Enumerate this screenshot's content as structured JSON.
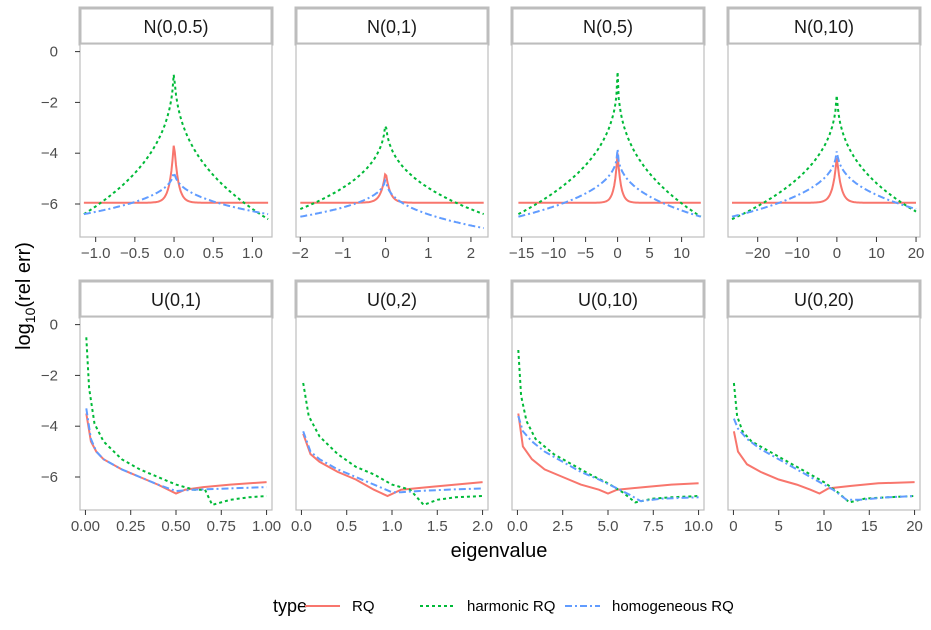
{
  "chart_data": {
    "type": "line",
    "xlabel": "eigenvalue",
    "ylabel_main": "log",
    "ylabel_sub": "10",
    "ylabel_rest": "(rel err)",
    "y_ticks": [
      0,
      -2,
      -4,
      -6
    ],
    "ylim": [
      -7.3,
      0.3
    ],
    "legend": {
      "title": "type",
      "position": "bottom",
      "entries": [
        {
          "name": "RQ",
          "color": "#F8766D",
          "dash": "solid"
        },
        {
          "name": "harmonic RQ",
          "color": "#00BA38",
          "dash": "dotted"
        },
        {
          "name": "homogeneous RQ",
          "color": "#619CFF",
          "dash": "dashed"
        }
      ]
    },
    "panels": [
      {
        "label": "N(0,0.5)",
        "kind": "normal",
        "xlim": [
          -1.2,
          1.25
        ],
        "x_ticks": [
          -1.0,
          -0.5,
          0.0,
          0.5,
          1.0
        ],
        "x_tick_labels": [
          "−1.0",
          "−0.5",
          "0.0",
          "0.5",
          "1.0"
        ],
        "series": {
          "RQ": {
            "xmin": -1.15,
            "xmax": 1.2,
            "peak": -3.5,
            "base": -5.95,
            "width": 0.05
          },
          "harmonic RQ": {
            "xmin": -1.15,
            "xmax": 1.2,
            "peak": 0.0,
            "left": -6.4,
            "right": -6.6,
            "width": 0.22
          },
          "homogeneous RQ": {
            "xmin": -1.15,
            "xmax": 1.2,
            "peak": -4.5,
            "left": -6.4,
            "right": -6.4,
            "width": 0.2
          }
        }
      },
      {
        "label": "N(0,1)",
        "kind": "normal",
        "xlim": [
          -2.1,
          2.4
        ],
        "x_ticks": [
          -2,
          -1,
          0,
          1,
          2
        ],
        "x_tick_labels": [
          "−2",
          "−1",
          "0",
          "1",
          "2"
        ],
        "series": {
          "RQ": {
            "xmin": -2.0,
            "xmax": 2.3,
            "peak": -4.7,
            "base": -5.95,
            "width": 0.1
          },
          "harmonic RQ": {
            "xmin": -2.0,
            "xmax": 2.3,
            "peak": -2.3,
            "left": -6.2,
            "right": -6.4,
            "width": 0.45
          },
          "homogeneous RQ": {
            "xmin": -2.0,
            "xmax": 2.3,
            "peak": -4.8,
            "left": -6.5,
            "right": -6.95,
            "width": 0.3
          }
        }
      },
      {
        "label": "N(0,5)",
        "kind": "normal",
        "xlim": [
          -16.5,
          13.5
        ],
        "x_ticks": [
          -15,
          -10,
          -5,
          0,
          5,
          10
        ],
        "x_tick_labels": [
          "−15",
          "−10",
          "−5",
          "0",
          "5",
          "10"
        ],
        "series": {
          "RQ": {
            "xmin": -15.5,
            "xmax": 13.0,
            "peak": -4.0,
            "base": -5.95,
            "width": 0.5
          },
          "harmonic RQ": {
            "xmin": -15.5,
            "xmax": 13.0,
            "peak": -0.5,
            "left": -6.4,
            "right": -6.5,
            "width": 2.5
          },
          "homogeneous RQ": {
            "xmin": -15.5,
            "xmax": 13.0,
            "peak": -3.7,
            "left": -6.5,
            "right": -6.5,
            "width": 2.5
          }
        }
      },
      {
        "label": "N(0,10)",
        "kind": "normal",
        "xlim": [
          -27.5,
          21
        ],
        "x_ticks": [
          -20,
          -10,
          0,
          10,
          20
        ],
        "x_tick_labels": [
          "−20",
          "−10",
          "0",
          "10",
          "20"
        ],
        "series": {
          "RQ": {
            "xmin": -26.5,
            "xmax": 20.0,
            "peak": -4.1,
            "base": -5.95,
            "width": 1.0
          },
          "harmonic RQ": {
            "xmin": -26.5,
            "xmax": 20.0,
            "peak": -1.1,
            "left": -6.6,
            "right": -6.3,
            "width": 5.0
          },
          "homogeneous RQ": {
            "xmin": -26.5,
            "xmax": 20.0,
            "peak": -3.6,
            "left": -6.5,
            "right": -6.2,
            "width": 5.0
          }
        }
      },
      {
        "label": "U(0,1)",
        "kind": "uniform",
        "xlim": [
          -0.03,
          1.03
        ],
        "x_ticks": [
          0.0,
          0.25,
          0.5,
          0.75,
          1.0
        ],
        "x_tick_labels": [
          "0.00",
          "0.25",
          "0.50",
          "0.75",
          "1.00"
        ],
        "series": {
          "RQ": {
            "x": [
              0.005,
              0.03,
              0.06,
              0.1,
              0.2,
              0.3,
              0.4,
              0.5,
              0.55,
              0.65,
              0.8,
              1.0
            ],
            "y": [
              -3.5,
              -4.6,
              -5.0,
              -5.3,
              -5.7,
              -6.0,
              -6.3,
              -6.65,
              -6.5,
              -6.4,
              -6.3,
              -6.2
            ]
          },
          "harmonic RQ": {
            "x": [
              0.005,
              0.02,
              0.05,
              0.1,
              0.2,
              0.3,
              0.4,
              0.5,
              0.6,
              0.66,
              0.7,
              0.8,
              0.9,
              1.0
            ],
            "y": [
              -0.5,
              -2.5,
              -3.9,
              -4.6,
              -5.3,
              -5.7,
              -6.0,
              -6.3,
              -6.5,
              -6.5,
              -7.1,
              -6.9,
              -6.8,
              -6.75
            ]
          },
          "homogeneous RQ": {
            "x": [
              0.005,
              0.03,
              0.06,
              0.1,
              0.2,
              0.3,
              0.4,
              0.5,
              0.6,
              0.8,
              1.0
            ],
            "y": [
              -3.3,
              -4.5,
              -5.0,
              -5.3,
              -5.7,
              -6.0,
              -6.3,
              -6.55,
              -6.5,
              -6.45,
              -6.4
            ]
          }
        }
      },
      {
        "label": "U(0,2)",
        "kind": "uniform",
        "xlim": [
          -0.06,
          2.06
        ],
        "x_ticks": [
          0.0,
          0.5,
          1.0,
          1.5,
          2.0
        ],
        "x_tick_labels": [
          "0.0",
          "0.5",
          "1.0",
          "1.5",
          "2.0"
        ],
        "series": {
          "RQ": {
            "x": [
              0.02,
              0.1,
              0.2,
              0.4,
              0.6,
              0.8,
              0.95,
              1.1,
              1.4,
              1.7,
              2.0
            ],
            "y": [
              -4.3,
              -5.1,
              -5.4,
              -5.8,
              -6.1,
              -6.5,
              -6.75,
              -6.5,
              -6.4,
              -6.3,
              -6.2
            ]
          },
          "harmonic RQ": {
            "x": [
              0.02,
              0.08,
              0.2,
              0.4,
              0.6,
              0.8,
              1.0,
              1.2,
              1.35,
              1.5,
              1.7,
              2.0
            ],
            "y": [
              -2.3,
              -3.6,
              -4.4,
              -5.1,
              -5.6,
              -5.9,
              -6.3,
              -6.5,
              -7.1,
              -6.9,
              -6.8,
              -6.75
            ]
          },
          "homogeneous RQ": {
            "x": [
              0.02,
              0.1,
              0.2,
              0.4,
              0.6,
              0.8,
              1.0,
              1.1,
              1.3,
              1.6,
              2.0
            ],
            "y": [
              -4.2,
              -5.0,
              -5.3,
              -5.7,
              -6.0,
              -6.3,
              -6.6,
              -6.6,
              -6.55,
              -6.5,
              -6.45
            ]
          }
        }
      },
      {
        "label": "U(0,10)",
        "kind": "uniform",
        "xlim": [
          -0.3,
          10.3
        ],
        "x_ticks": [
          0.0,
          2.5,
          5.0,
          7.5,
          10.0
        ],
        "x_tick_labels": [
          "0.0",
          "2.5",
          "5.0",
          "7.5",
          "10.0"
        ],
        "series": {
          "RQ": {
            "x": [
              0.05,
              0.3,
              0.8,
              1.5,
              2.5,
              3.5,
              4.5,
              5.0,
              5.5,
              7.0,
              8.5,
              10.0
            ],
            "y": [
              -3.5,
              -4.8,
              -5.3,
              -5.7,
              -6.0,
              -6.3,
              -6.5,
              -6.65,
              -6.5,
              -6.4,
              -6.3,
              -6.25
            ]
          },
          "harmonic RQ": {
            "x": [
              0.05,
              0.2,
              0.5,
              1.0,
              2.0,
              3.0,
              4.0,
              5.0,
              5.8,
              6.5,
              7.5,
              8.5,
              10.0
            ],
            "y": [
              -1.0,
              -2.8,
              -3.8,
              -4.5,
              -5.1,
              -5.5,
              -5.9,
              -6.25,
              -6.6,
              -7.0,
              -6.85,
              -6.8,
              -6.75
            ]
          },
          "homogeneous RQ": {
            "x": [
              0.05,
              0.3,
              0.8,
              1.5,
              2.5,
              3.5,
              4.5,
              5.5,
              6.2,
              6.8,
              8.0,
              10.0
            ],
            "y": [
              -3.6,
              -4.2,
              -4.6,
              -5.0,
              -5.4,
              -5.8,
              -6.1,
              -6.45,
              -6.7,
              -6.95,
              -6.85,
              -6.8
            ]
          }
        }
      },
      {
        "label": "U(0,20)",
        "kind": "uniform",
        "xlim": [
          -0.6,
          20.6
        ],
        "x_ticks": [
          0,
          5,
          10,
          15,
          20
        ],
        "x_tick_labels": [
          "0",
          "5",
          "10",
          "15",
          "20"
        ],
        "series": {
          "RQ": {
            "x": [
              0.05,
              0.5,
              1.5,
              3.0,
              5.0,
              7.0,
              8.5,
              9.5,
              10.5,
              13.0,
              16.0,
              20.0
            ],
            "y": [
              -4.2,
              -5.0,
              -5.5,
              -5.8,
              -6.1,
              -6.3,
              -6.5,
              -6.65,
              -6.45,
              -6.35,
              -6.25,
              -6.2
            ]
          },
          "harmonic RQ": {
            "x": [
              0.05,
              0.4,
              1.0,
              2.0,
              4.0,
              6.0,
              8.0,
              10.0,
              11.5,
              12.8,
              14.5,
              17.0,
              20.0
            ],
            "y": [
              -2.3,
              -3.6,
              -4.2,
              -4.6,
              -5.0,
              -5.4,
              -5.8,
              -6.2,
              -6.6,
              -7.0,
              -6.85,
              -6.8,
              -6.75
            ]
          },
          "homogeneous RQ": {
            "x": [
              0.05,
              0.5,
              1.5,
              3.0,
              5.0,
              7.0,
              9.0,
              11.0,
              12.5,
              14.0,
              17.0,
              20.0
            ],
            "y": [
              -3.7,
              -4.1,
              -4.5,
              -4.9,
              -5.3,
              -5.7,
              -6.1,
              -6.5,
              -6.9,
              -6.9,
              -6.8,
              -6.75
            ]
          }
        }
      }
    ]
  }
}
